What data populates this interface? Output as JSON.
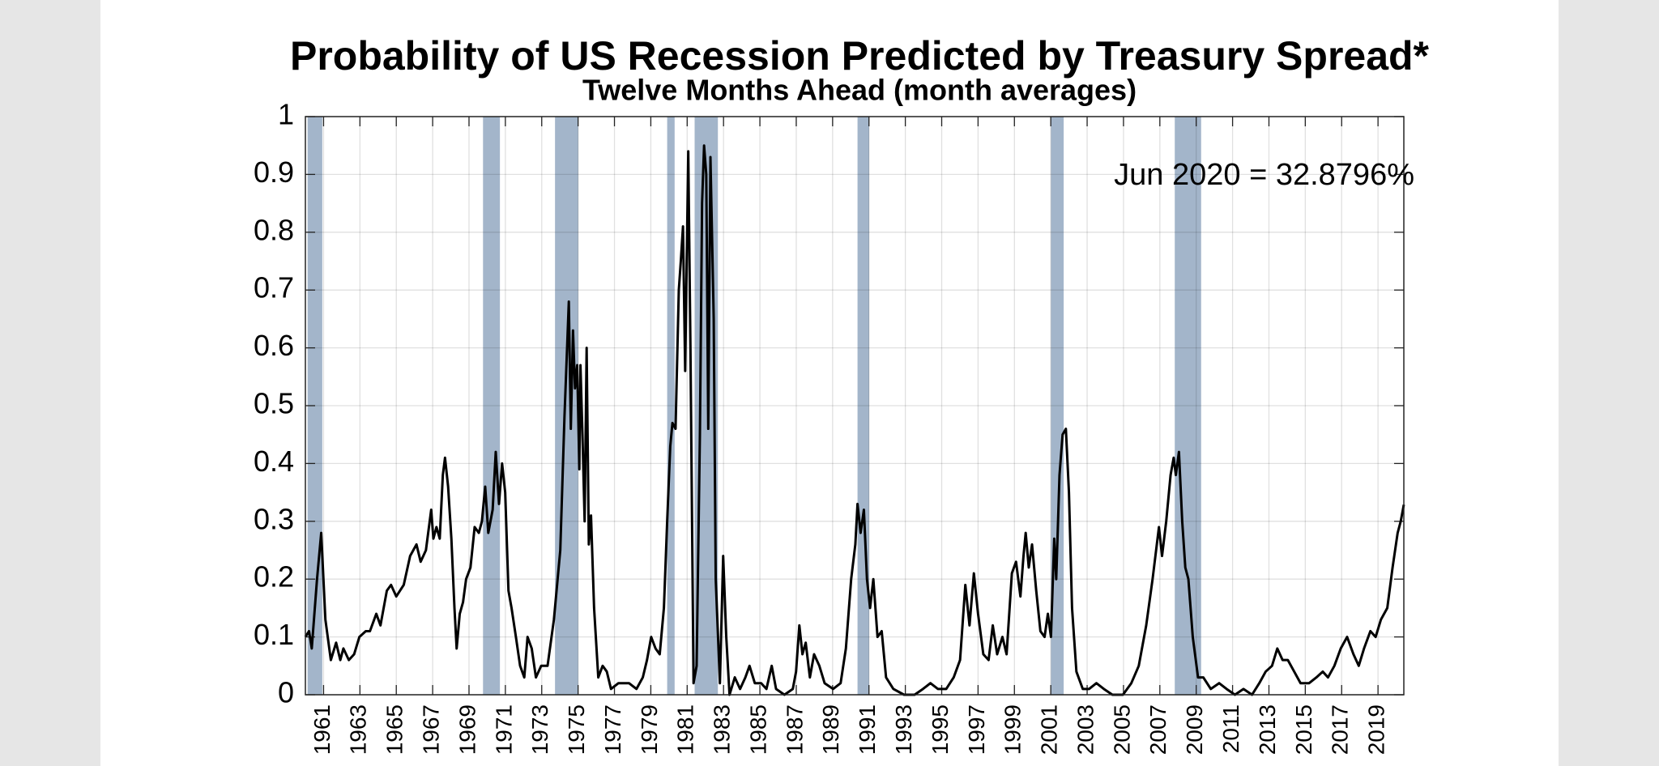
{
  "chart_data": {
    "type": "line",
    "title": "Probability of US Recession Predicted by Treasury Spread*",
    "subtitle": "Twelve Months Ahead (month averages)",
    "annotation": "Jun 2020 = 32.8796%",
    "color": "#000000",
    "recession_color": "#a3b5ca",
    "grid": true,
    "xlim": [
      1960,
      2020.42
    ],
    "ylim": [
      0,
      1
    ],
    "xticks": [
      1961,
      1963,
      1965,
      1967,
      1969,
      1971,
      1973,
      1975,
      1977,
      1979,
      1981,
      1983,
      1985,
      1987,
      1989,
      1991,
      1993,
      1995,
      1997,
      1999,
      2001,
      2003,
      2005,
      2007,
      2009,
      2011,
      2013,
      2015,
      2017,
      2019
    ],
    "yticks": [
      0,
      0.1,
      0.2,
      0.3,
      0.4,
      0.5,
      0.6,
      0.7,
      0.8,
      0.9,
      1
    ],
    "recessions": [
      [
        1960.12,
        1960.93
      ],
      [
        1969.77,
        1970.7
      ],
      [
        1973.73,
        1975.01
      ],
      [
        1979.9,
        1980.31
      ],
      [
        1981.41,
        1982.69
      ],
      [
        1990.37,
        1991.01
      ],
      [
        2001.01,
        2001.71
      ],
      [
        2007.82,
        2009.27
      ]
    ],
    "x": [
      1960.0,
      1960.2,
      1960.35,
      1960.64,
      1960.87,
      1961.1,
      1961.4,
      1961.69,
      1961.92,
      1962.09,
      1962.39,
      1962.68,
      1962.97,
      1963.32,
      1963.55,
      1963.9,
      1964.13,
      1964.48,
      1964.71,
      1965.0,
      1965.41,
      1965.76,
      1966.11,
      1966.34,
      1966.63,
      1966.92,
      1967.04,
      1967.21,
      1967.39,
      1967.56,
      1967.68,
      1967.85,
      1968.03,
      1968.2,
      1968.32,
      1968.49,
      1968.67,
      1968.84,
      1969.08,
      1969.31,
      1969.54,
      1969.71,
      1969.89,
      1970.06,
      1970.3,
      1970.47,
      1970.65,
      1970.82,
      1970.99,
      1971.17,
      1971.34,
      1971.58,
      1971.81,
      1972.04,
      1972.22,
      1972.45,
      1972.68,
      1972.97,
      1973.32,
      1973.67,
      1974.02,
      1974.25,
      1974.49,
      1974.6,
      1974.72,
      1974.83,
      1974.95,
      1975.07,
      1975.13,
      1975.24,
      1975.36,
      1975.47,
      1975.59,
      1975.71,
      1975.88,
      1976.11,
      1976.35,
      1976.58,
      1976.81,
      1977.22,
      1977.8,
      1978.21,
      1978.56,
      1978.79,
      1979.02,
      1979.26,
      1979.49,
      1979.72,
      1979.9,
      1980.07,
      1980.19,
      1980.36,
      1980.54,
      1980.65,
      1980.77,
      1980.89,
      1981.06,
      1981.18,
      1981.35,
      1981.52,
      1981.7,
      1981.82,
      1981.93,
      1982.05,
      1982.16,
      1982.28,
      1982.46,
      1982.57,
      1982.8,
      1982.98,
      1983.15,
      1983.33,
      1983.62,
      1983.91,
      1984.2,
      1984.43,
      1984.72,
      1985.07,
      1985.36,
      1985.65,
      1985.89,
      1986.35,
      1986.81,
      1986.99,
      1987.17,
      1987.34,
      1987.52,
      1987.75,
      1987.98,
      1988.27,
      1988.56,
      1989.03,
      1989.44,
      1989.73,
      1990.02,
      1990.25,
      1990.37,
      1990.54,
      1990.72,
      1990.89,
      1991.06,
      1991.24,
      1991.47,
      1991.7,
      1991.94,
      1992.34,
      1992.93,
      1993.51,
      1993.97,
      1994.38,
      1994.79,
      1995.25,
      1995.66,
      1996.01,
      1996.3,
      1996.53,
      1996.77,
      1997.0,
      1997.29,
      1997.58,
      1997.81,
      1998.05,
      1998.34,
      1998.57,
      1998.86,
      1999.09,
      1999.33,
      1999.5,
      1999.62,
      1999.79,
      1999.97,
      2000.2,
      2000.43,
      2000.66,
      2000.84,
      2001.01,
      2001.19,
      2001.3,
      2001.48,
      2001.65,
      2001.83,
      2002.0,
      2002.17,
      2002.41,
      2002.76,
      2003.11,
      2003.51,
      2003.92,
      2004.39,
      2004.97,
      2005.43,
      2005.84,
      2006.25,
      2006.6,
      2006.95,
      2007.12,
      2007.35,
      2007.59,
      2007.76,
      2007.88,
      2008.05,
      2008.23,
      2008.4,
      2008.57,
      2008.81,
      2009.1,
      2009.39,
      2009.8,
      2010.26,
      2010.67,
      2011.13,
      2011.6,
      2012.07,
      2012.47,
      2012.82,
      2013.17,
      2013.46,
      2013.75,
      2014.04,
      2014.39,
      2014.74,
      2015.21,
      2015.61,
      2015.96,
      2016.25,
      2016.6,
      2016.95,
      2017.3,
      2017.65,
      2017.94,
      2018.23,
      2018.58,
      2018.87,
      2019.16,
      2019.51,
      2019.8,
      2020.08,
      2020.25,
      2020.42
    ],
    "values": [
      0.1,
      0.11,
      0.08,
      0.2,
      0.28,
      0.13,
      0.06,
      0.09,
      0.06,
      0.08,
      0.06,
      0.07,
      0.1,
      0.11,
      0.11,
      0.14,
      0.12,
      0.18,
      0.19,
      0.17,
      0.19,
      0.24,
      0.26,
      0.23,
      0.25,
      0.32,
      0.27,
      0.29,
      0.27,
      0.38,
      0.41,
      0.36,
      0.27,
      0.15,
      0.08,
      0.14,
      0.16,
      0.2,
      0.22,
      0.29,
      0.28,
      0.3,
      0.36,
      0.28,
      0.32,
      0.42,
      0.33,
      0.4,
      0.35,
      0.18,
      0.15,
      0.1,
      0.05,
      0.03,
      0.1,
      0.08,
      0.03,
      0.05,
      0.05,
      0.13,
      0.25,
      0.48,
      0.68,
      0.46,
      0.63,
      0.53,
      0.57,
      0.39,
      0.57,
      0.45,
      0.3,
      0.6,
      0.26,
      0.31,
      0.15,
      0.03,
      0.05,
      0.04,
      0.01,
      0.02,
      0.02,
      0.01,
      0.03,
      0.06,
      0.1,
      0.08,
      0.07,
      0.15,
      0.3,
      0.43,
      0.47,
      0.46,
      0.7,
      0.75,
      0.81,
      0.56,
      0.94,
      0.6,
      0.02,
      0.05,
      0.45,
      0.85,
      0.95,
      0.9,
      0.46,
      0.93,
      0.65,
      0.2,
      0.02,
      0.24,
      0.1,
      0.0,
      0.03,
      0.01,
      0.03,
      0.05,
      0.02,
      0.02,
      0.01,
      0.05,
      0.01,
      0.0,
      0.01,
      0.04,
      0.12,
      0.07,
      0.09,
      0.03,
      0.07,
      0.05,
      0.02,
      0.01,
      0.02,
      0.08,
      0.2,
      0.26,
      0.33,
      0.28,
      0.32,
      0.2,
      0.15,
      0.2,
      0.1,
      0.11,
      0.03,
      0.01,
      0.0,
      0.0,
      0.01,
      0.02,
      0.01,
      0.01,
      0.03,
      0.06,
      0.19,
      0.12,
      0.21,
      0.14,
      0.07,
      0.06,
      0.12,
      0.07,
      0.1,
      0.07,
      0.21,
      0.23,
      0.17,
      0.24,
      0.28,
      0.22,
      0.26,
      0.18,
      0.11,
      0.1,
      0.14,
      0.1,
      0.27,
      0.2,
      0.38,
      0.45,
      0.46,
      0.35,
      0.15,
      0.04,
      0.01,
      0.01,
      0.02,
      0.01,
      0.0,
      0.0,
      0.02,
      0.05,
      0.12,
      0.2,
      0.29,
      0.24,
      0.3,
      0.38,
      0.41,
      0.38,
      0.42,
      0.3,
      0.22,
      0.2,
      0.1,
      0.03,
      0.03,
      0.01,
      0.02,
      0.01,
      0.0,
      0.01,
      0.0,
      0.02,
      0.04,
      0.05,
      0.08,
      0.06,
      0.06,
      0.04,
      0.02,
      0.02,
      0.03,
      0.04,
      0.03,
      0.05,
      0.08,
      0.1,
      0.07,
      0.05,
      0.08,
      0.11,
      0.1,
      0.13,
      0.15,
      0.22,
      0.28,
      0.3,
      0.328796
    ]
  }
}
